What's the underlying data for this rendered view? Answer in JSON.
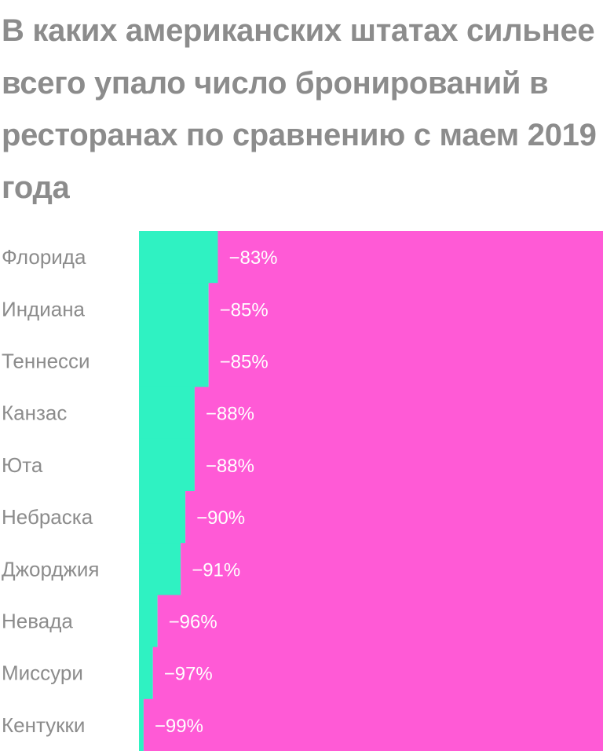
{
  "chart_data": {
    "type": "bar",
    "title": "В каких американских штатах сильнее всего упало число бронирований в ресторанах по сравнению с маем 2019 года",
    "categories": [
      "Флорида",
      "Индиана",
      "Теннесси",
      "Канзас",
      "Юта",
      "Небраска",
      "Джорджия",
      "Невада",
      "Миссури",
      "Кентукки"
    ],
    "values": [
      -83,
      -85,
      -85,
      -88,
      -88,
      -90,
      -91,
      -96,
      -97,
      -99
    ],
    "value_labels": [
      "−83%",
      "−85%",
      "−85%",
      "−88%",
      "−88%",
      "−90%",
      "−91%",
      "−96%",
      "−97%",
      "−99%"
    ],
    "ylim": [
      -100,
      0
    ],
    "grid": false,
    "legend": "none",
    "colors": {
      "decline": "#ff5ad6",
      "remaining": "#2ff2c2",
      "title": "#8c8c8c",
      "category_text": "#8c8c8c",
      "value_text": "#ffffff"
    }
  }
}
